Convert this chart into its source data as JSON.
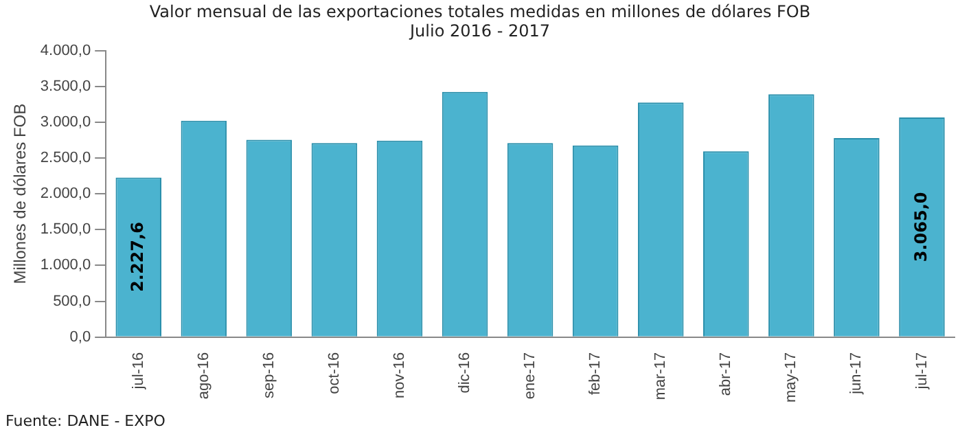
{
  "chart_data": {
    "type": "bar",
    "title": "Valor mensual de las exportaciones totales medidas en millones de dólares FOB",
    "subtitle": "Julio 2016 - 2017",
    "ylabel": "Millones de dólares FOB",
    "categories": [
      "jul-16",
      "ago-16",
      "sep-16",
      "oct-16",
      "nov-16",
      "dic-16",
      "ene-17",
      "feb-17",
      "mar-17",
      "abr-17",
      "may-17",
      "jun-17",
      "jul-17"
    ],
    "values": [
      2227.6,
      3020,
      2755,
      2709,
      2743,
      3424,
      2709,
      2674,
      3274,
      2594,
      3389,
      2778,
      3065.0
    ],
    "value_labels": [
      "2.227,6",
      null,
      null,
      null,
      null,
      null,
      null,
      null,
      null,
      null,
      null,
      null,
      "3.065,0"
    ],
    "color": "#4bb3cf",
    "ylim": [
      0,
      4000
    ],
    "yticks": [
      {
        "value": 0,
        "label": "0,0"
      },
      {
        "value": 500,
        "label": "500,0"
      },
      {
        "value": 1000,
        "label": "1.000,0"
      },
      {
        "value": 1500,
        "label": "1.500,0"
      },
      {
        "value": 2000,
        "label": "2.000,0"
      },
      {
        "value": 2500,
        "label": "2.500,0"
      },
      {
        "value": 3000,
        "label": "3.000,0"
      },
      {
        "value": 3500,
        "label": "3.500,0"
      },
      {
        "value": 4000,
        "label": "4.000,0"
      }
    ],
    "grid": false,
    "legend": false,
    "annotations": [
      "Fuente: DANE - EXPO"
    ]
  }
}
